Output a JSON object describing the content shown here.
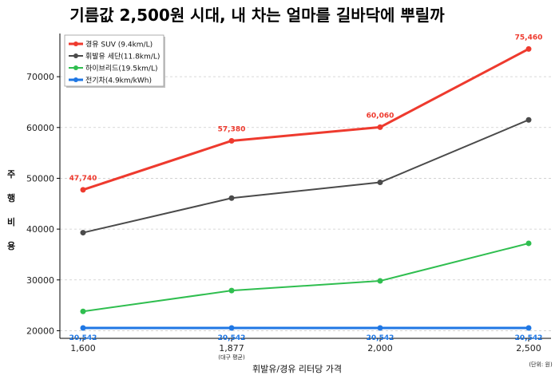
{
  "chart_data": {
    "type": "line",
    "title": "기름값 2,500원 시대, 내 차는 얼마를 길바닥에 뿌릴까",
    "xlabel": "휘발유/경유 리터당 가격",
    "ylabel": "주행비용",
    "unit_note": "(단위: 원)",
    "categories": [
      "1,600",
      "1,877",
      "2,000",
      "2,500"
    ],
    "category_notes": [
      "",
      "(대구 평균)",
      "",
      ""
    ],
    "ylim": [
      18500,
      78500
    ],
    "yticks": [
      20000,
      30000,
      40000,
      50000,
      60000,
      70000
    ],
    "ytick_labels": [
      "20000",
      "30000",
      "40000",
      "50000",
      "60000",
      "70000"
    ],
    "grid": true,
    "legend_position": "top-left",
    "series": [
      {
        "name": "경유 SUV (9.4km/L)",
        "color": "#ee3a2e",
        "values": [
          47740,
          57380,
          60060,
          75460
        ],
        "labels": [
          "47,740",
          "57,380",
          "60,060",
          "75,460"
        ],
        "emphasis": true
      },
      {
        "name": "휘발유 세단(11.8km/L)",
        "color": "#4a4a4a",
        "values": [
          39300,
          46100,
          49200,
          61500
        ],
        "labels": [],
        "emphasis": false
      },
      {
        "name": "하이브리드(19.5km/L)",
        "color": "#2fbe4f",
        "values": [
          23800,
          27900,
          29800,
          37200
        ],
        "labels": [],
        "emphasis": false
      },
      {
        "name": "전기차(4.9km/kWh)",
        "color": "#1f77e4",
        "values": [
          20542,
          20542,
          20542,
          20542
        ],
        "labels": [
          "20,542",
          "20,542",
          "20,542",
          "20,542"
        ],
        "emphasis": true
      }
    ]
  }
}
